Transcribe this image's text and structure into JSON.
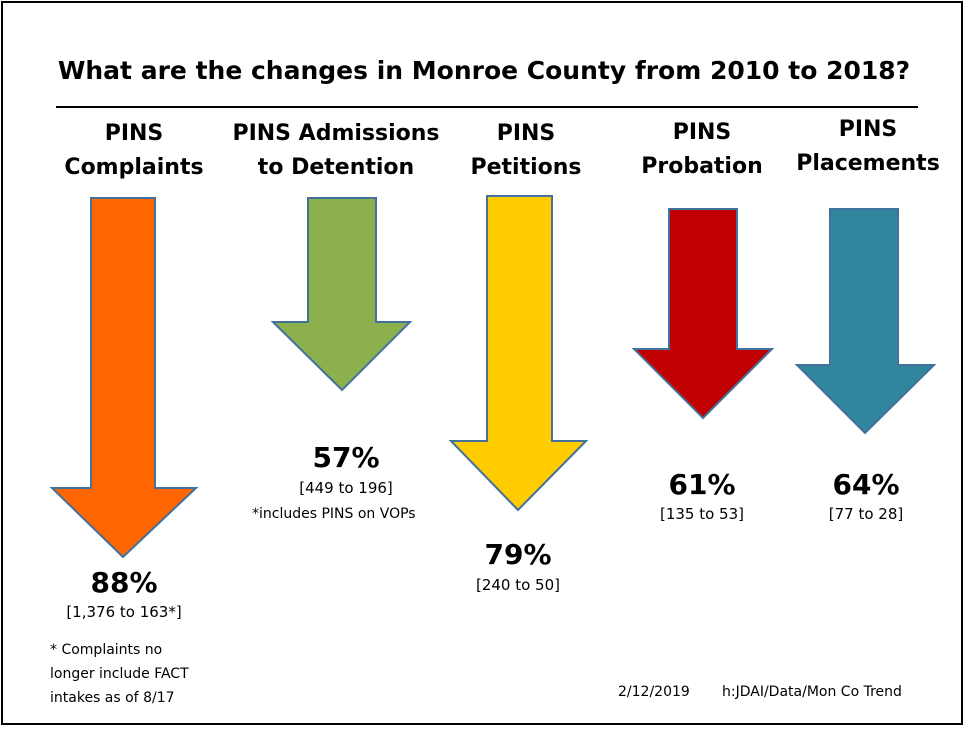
{
  "title": "What are the changes in Monroe County from 2010 to 2018?",
  "colors": {
    "complaints": "#FF6600",
    "admissions": "#8DB04F",
    "petitions": "#FFCC00",
    "probation": "#C00000",
    "placements": "#31859C",
    "arrow_outline": "#41719C"
  },
  "icons": [
    "down-arrow-icon"
  ],
  "measures": [
    {
      "heading_line1": "PINS",
      "heading_line2": "Complaints",
      "percent": "88%",
      "range": "[1,376 to 163*]",
      "percent_decrease": 88,
      "from": 1376,
      "to": 163
    },
    {
      "heading_line1": "PINS Admissions",
      "heading_line2": "to Detention",
      "percent": "57%",
      "range": "[449 to 196]",
      "note": "*includes PINS on VOPs",
      "percent_decrease": 57,
      "from": 449,
      "to": 196
    },
    {
      "heading_line1": "PINS",
      "heading_line2": "Petitions",
      "percent": "79%",
      "range": "[240 to 50]",
      "percent_decrease": 79,
      "from": 240,
      "to": 50
    },
    {
      "heading_line1": "PINS",
      "heading_line2": "Probation",
      "percent": "61%",
      "range": "[135 to 53]",
      "percent_decrease": 61,
      "from": 135,
      "to": 53
    },
    {
      "heading_line1": "PINS",
      "heading_line2": "Placements",
      "percent": "64%",
      "range": "[77 to 28]",
      "percent_decrease": 64,
      "from": 77,
      "to": 28
    }
  ],
  "footnote": {
    "line1": "* Complaints no",
    "line2": "longer include FACT",
    "line3": "intakes as of 8/17"
  },
  "footer": {
    "date": "2/12/2019",
    "source": "h:JDAI/Data/Mon Co Trend"
  }
}
